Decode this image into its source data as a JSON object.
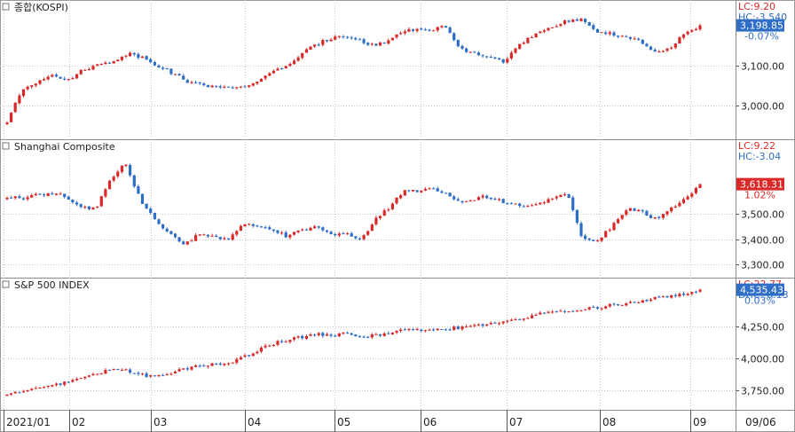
{
  "chart_data": [
    {
      "type": "candlestick",
      "title": "종합(KOSPI)",
      "ylim": [
        2930,
        3240
      ],
      "yticks": [
        3000,
        3100
      ],
      "ytick_labels": [
        "3,000.00",
        "3,100.00"
      ],
      "last_value_label": "3,198.85",
      "change_label": "-0.07%",
      "info": [
        "LC:9.20",
        "HC:-3.540"
      ],
      "badge_color": "#2f6ec6",
      "path": [
        2960,
        3040,
        3060,
        3080,
        3060,
        3090,
        3100,
        3110,
        3130,
        3120,
        3100,
        3080,
        3060,
        3050,
        3050,
        3040,
        3050,
        3070,
        3090,
        3110,
        3140,
        3160,
        3175,
        3170,
        3150,
        3155,
        3180,
        3190,
        3185,
        3200,
        3140,
        3130,
        3120,
        3110,
        3150,
        3175,
        3190,
        3210,
        3215,
        3185,
        3180,
        3170,
        3160,
        3130,
        3140,
        3180,
        3199
      ]
    },
    {
      "type": "candlestick",
      "title": "Shanghai Composite",
      "ylim": [
        3270,
        3760
      ],
      "yticks": [
        3300,
        3400,
        3500
      ],
      "ytick_labels": [
        "3,300.00",
        "3,400.00",
        "3,500.00"
      ],
      "last_value_label": "3,618.31",
      "change_label": "1.02%",
      "info": [
        "LC:9.22",
        "HC:-3.04"
      ],
      "badge_color": "#d92a2a",
      "path": [
        3570,
        3560,
        3575,
        3580,
        3570,
        3530,
        3520,
        3640,
        3700,
        3560,
        3480,
        3420,
        3380,
        3420,
        3410,
        3400,
        3460,
        3450,
        3440,
        3410,
        3440,
        3450,
        3420,
        3420,
        3400,
        3480,
        3530,
        3600,
        3590,
        3600,
        3570,
        3540,
        3570,
        3560,
        3540,
        3530,
        3540,
        3560,
        3580,
        3400,
        3390,
        3450,
        3520,
        3510,
        3480,
        3520,
        3560,
        3618
      ]
    },
    {
      "type": "candlestick",
      "title": "S&P 500 INDEX",
      "ylim": [
        3640,
        4560
      ],
      "yticks": [
        3750,
        4000,
        4250
      ],
      "ytick_labels": [
        "3,750.00",
        "4,000.00",
        "4,250.00"
      ],
      "last_value_label": "4,535.43",
      "change_label": "0.03%",
      "info": [
        "LC:22.77",
        "DHC:-0.13"
      ],
      "badge_color": "#2f6ec6",
      "path": [
        3720,
        3740,
        3760,
        3780,
        3810,
        3850,
        3870,
        3900,
        3920,
        3890,
        3860,
        3870,
        3900,
        3930,
        3950,
        3960,
        3980,
        4020,
        4080,
        4120,
        4150,
        4170,
        4190,
        4180,
        4200,
        4160,
        4180,
        4200,
        4220,
        4230,
        4210,
        4230,
        4240,
        4250,
        4260,
        4280,
        4300,
        4330,
        4350,
        4360,
        4370,
        4390,
        4400,
        4420,
        4430,
        4450,
        4470,
        4490,
        4510,
        4535
      ]
    }
  ],
  "x_axis": {
    "tick_labels": [
      "2021/01",
      "02",
      "03",
      "04",
      "05",
      "06",
      "07",
      "08",
      "09",
      "09/06"
    ]
  },
  "colors": {
    "up": "#d92a2a",
    "down": "#2f6ec6",
    "grid": "#c7c7c7",
    "text": "#222222"
  }
}
